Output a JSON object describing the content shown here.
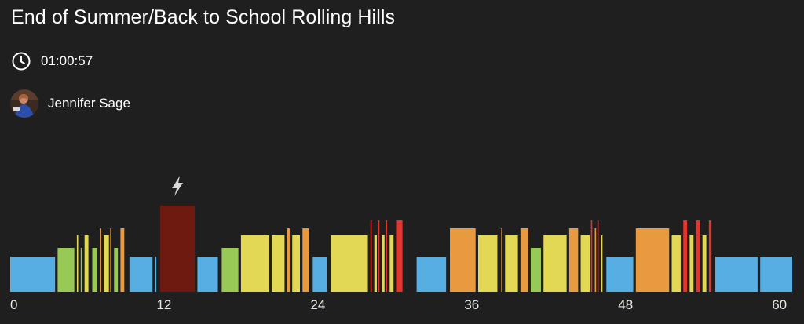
{
  "class": {
    "title": "End of Summer/Back to School Rolling Hills",
    "duration": "01:00:57",
    "instructor": "Jennifer Sage"
  },
  "icons": {
    "duration": "clock-icon",
    "peak": "lightning-bolt-icon",
    "instructor": "instructor-avatar"
  },
  "chart_data": {
    "type": "bar",
    "x_unit": "minutes",
    "xlim": [
      0,
      61
    ],
    "x_ticks": [
      "0",
      "12",
      "24",
      "36",
      "48",
      "60"
    ],
    "zones": {
      "1": "#56aee2",
      "2": "#98c957",
      "3": "#e2d853",
      "4": "#ea9a3e",
      "5": "#e2352e",
      "6": "#6f1a10"
    },
    "intervals": [
      {
        "start": 0.0,
        "end": 3.5,
        "zone": 1
      },
      {
        "start": 3.7,
        "end": 5.0,
        "zone": 2
      },
      {
        "start": 5.2,
        "end": 5.3,
        "zone": 3
      },
      {
        "start": 5.5,
        "end": 5.6,
        "zone": 2
      },
      {
        "start": 5.8,
        "end": 6.1,
        "zone": 3
      },
      {
        "start": 6.4,
        "end": 6.8,
        "zone": 2
      },
      {
        "start": 7.0,
        "end": 7.1,
        "zone": 4
      },
      {
        "start": 7.3,
        "end": 7.7,
        "zone": 3
      },
      {
        "start": 7.8,
        "end": 7.9,
        "zone": 4
      },
      {
        "start": 8.1,
        "end": 8.4,
        "zone": 2
      },
      {
        "start": 8.6,
        "end": 8.9,
        "zone": 4
      },
      {
        "start": 9.3,
        "end": 11.1,
        "zone": 1
      },
      {
        "start": 11.3,
        "end": 11.4,
        "zone": 1
      },
      {
        "start": 11.7,
        "end": 14.4,
        "zone": 6,
        "peak": true
      },
      {
        "start": 14.6,
        "end": 16.2,
        "zone": 1
      },
      {
        "start": 16.5,
        "end": 17.8,
        "zone": 2
      },
      {
        "start": 18.0,
        "end": 20.2,
        "zone": 3
      },
      {
        "start": 20.4,
        "end": 21.4,
        "zone": 3
      },
      {
        "start": 21.6,
        "end": 21.8,
        "zone": 4
      },
      {
        "start": 22.0,
        "end": 22.6,
        "zone": 3
      },
      {
        "start": 22.8,
        "end": 23.3,
        "zone": 4
      },
      {
        "start": 23.6,
        "end": 24.7,
        "zone": 1
      },
      {
        "start": 25.0,
        "end": 27.9,
        "zone": 3
      },
      {
        "start": 28.1,
        "end": 28.2,
        "zone": 5
      },
      {
        "start": 28.4,
        "end": 28.6,
        "zone": 3
      },
      {
        "start": 28.7,
        "end": 28.8,
        "zone": 5
      },
      {
        "start": 29.0,
        "end": 29.2,
        "zone": 3
      },
      {
        "start": 29.3,
        "end": 29.4,
        "zone": 5
      },
      {
        "start": 29.6,
        "end": 29.9,
        "zone": 3
      },
      {
        "start": 30.1,
        "end": 30.6,
        "zone": 5
      },
      {
        "start": 31.7,
        "end": 34.0,
        "zone": 1
      },
      {
        "start": 34.3,
        "end": 36.3,
        "zone": 4
      },
      {
        "start": 36.5,
        "end": 38.0,
        "zone": 3
      },
      {
        "start": 38.3,
        "end": 38.4,
        "zone": 4
      },
      {
        "start": 38.6,
        "end": 39.6,
        "zone": 3
      },
      {
        "start": 39.8,
        "end": 40.4,
        "zone": 4
      },
      {
        "start": 40.6,
        "end": 41.4,
        "zone": 2
      },
      {
        "start": 41.6,
        "end": 43.4,
        "zone": 3
      },
      {
        "start": 43.6,
        "end": 44.3,
        "zone": 4
      },
      {
        "start": 44.5,
        "end": 45.2,
        "zone": 3
      },
      {
        "start": 45.3,
        "end": 45.4,
        "zone": 5
      },
      {
        "start": 45.6,
        "end": 45.7,
        "zone": 4
      },
      {
        "start": 45.8,
        "end": 45.9,
        "zone": 5
      },
      {
        "start": 46.1,
        "end": 46.2,
        "zone": 3
      },
      {
        "start": 46.5,
        "end": 48.6,
        "zone": 1
      },
      {
        "start": 48.8,
        "end": 51.4,
        "zone": 4
      },
      {
        "start": 51.6,
        "end": 52.3,
        "zone": 3
      },
      {
        "start": 52.5,
        "end": 52.8,
        "zone": 5
      },
      {
        "start": 53.0,
        "end": 53.3,
        "zone": 3
      },
      {
        "start": 53.5,
        "end": 53.8,
        "zone": 5
      },
      {
        "start": 54.0,
        "end": 54.3,
        "zone": 3
      },
      {
        "start": 54.5,
        "end": 54.7,
        "zone": 5
      },
      {
        "start": 55.0,
        "end": 58.3,
        "zone": 1
      },
      {
        "start": 58.5,
        "end": 61.0,
        "zone": 1
      }
    ]
  }
}
